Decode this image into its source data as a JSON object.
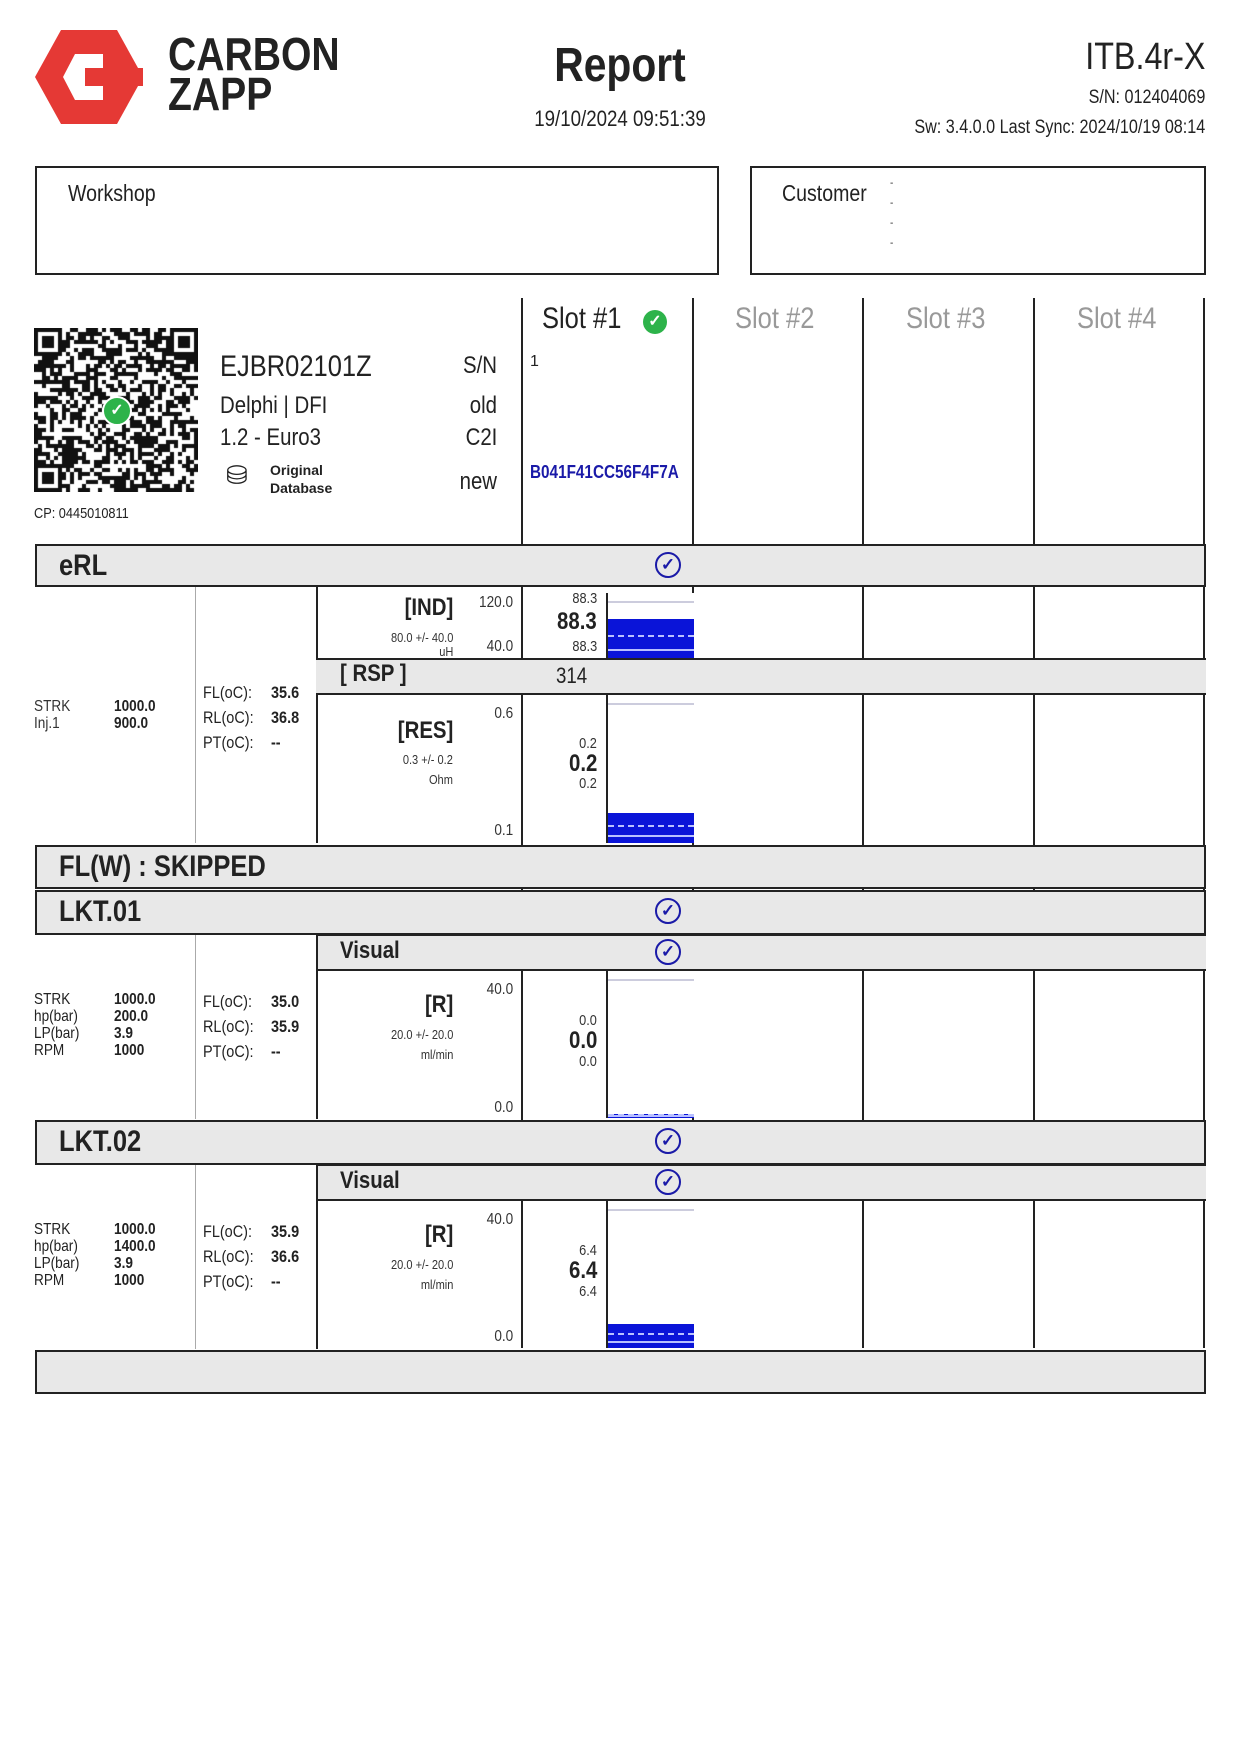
{
  "brand": {
    "line1": "CARBON",
    "line2": "ZAPP",
    "color": "#e53935"
  },
  "header": {
    "title": "Report",
    "datetime": "19/10/2024 09:51:39",
    "device": "ITB.4r-X",
    "serial": "S/N: 012404069",
    "software": "Sw: 3.4.0.0 Last Sync: 2024/10/19 08:14"
  },
  "workshop": {
    "label": "Workshop"
  },
  "customer": {
    "label": "Customer",
    "lines": [
      "-",
      "-",
      "-",
      "-"
    ]
  },
  "injector": {
    "code": "EJBR02101Z",
    "make": "Delphi | DFI",
    "engine": "1.2 - Euro3",
    "database": [
      "Original",
      "Database"
    ],
    "cp": "CP: 0445010811",
    "sn_label": "S/N",
    "old_label": "old",
    "c2i_label": "C2I",
    "new_label": "new"
  },
  "slots": [
    {
      "label": "Slot #1",
      "status": "ok",
      "sn": "1",
      "code": "B041F41CC56F4F7A"
    },
    {
      "label": "Slot #2"
    },
    {
      "label": "Slot #3"
    },
    {
      "label": "Slot #4"
    }
  ],
  "erl": {
    "title": "eRL",
    "params": {
      "strk_label": "STRK",
      "strk": "1000.0",
      "inj_label": "Inj.1",
      "inj": "900.0"
    },
    "temps": {
      "fl_label": "FL(oC):",
      "fl": "35.6",
      "rl_label": "RL(oC):",
      "rl": "36.8",
      "pt_label": "PT(oC):",
      "pt": "--"
    },
    "ind": {
      "label": "[IND]",
      "spec": "80.0 +/- 40.0",
      "unit": "uH",
      "max": "120.0",
      "min": "40.0",
      "top": "88.3",
      "value": "88.3",
      "bottom": "88.3",
      "range": [
        40,
        120
      ],
      "fill": 88.3
    },
    "rsp": {
      "label": "[ RSP ]",
      "value": "314"
    },
    "res": {
      "label": "[RES]",
      "spec": "0.3 +/- 0.2",
      "unit": "Ohm",
      "max": "0.6",
      "min": "0.1",
      "top": "0.2",
      "value": "0.2",
      "bottom": "0.2",
      "range": [
        0.1,
        0.6
      ],
      "fill": 0.2
    }
  },
  "flw": {
    "title": "FL(W) : SKIPPED"
  },
  "lkt1": {
    "title": "LKT.01",
    "visual": "Visual",
    "params": {
      "l1": "STRK",
      "v1": "1000.0",
      "l2": "hp(bar)",
      "v2": "200.0",
      "l3": "LP(bar)",
      "v3": "3.9",
      "l4": "RPM",
      "v4": "1000"
    },
    "temps": {
      "fl_label": "FL(oC):",
      "fl": "35.0",
      "rl_label": "RL(oC):",
      "rl": "35.9",
      "pt_label": "PT(oC):",
      "pt": "--"
    },
    "r": {
      "label": "[R]",
      "spec": "20.0 +/- 20.0",
      "unit": "ml/min",
      "max": "40.0",
      "min": "0.0",
      "top": "0.0",
      "value": "0.0",
      "bottom": "0.0",
      "range": [
        0,
        40
      ],
      "fill": 0.0
    }
  },
  "lkt2": {
    "title": "LKT.02",
    "visual": "Visual",
    "params": {
      "l1": "STRK",
      "v1": "1000.0",
      "l2": "hp(bar)",
      "v2": "1400.0",
      "l3": "LP(bar)",
      "v3": "3.9",
      "l4": "RPM",
      "v4": "1000"
    },
    "temps": {
      "fl_label": "FL(oC):",
      "fl": "35.9",
      "rl_label": "RL(oC):",
      "rl": "36.6",
      "pt_label": "PT(oC):",
      "pt": "--"
    },
    "r": {
      "label": "[R]",
      "spec": "20.0 +/- 20.0",
      "unit": "ml/min",
      "max": "40.0",
      "min": "0.0",
      "top": "6.4",
      "value": "6.4",
      "bottom": "6.4",
      "range": [
        0,
        40
      ],
      "fill": 6.4
    }
  },
  "colors": {
    "pass": "#2db34a",
    "bar": "#0a14d8",
    "check": "#1a1aa8"
  }
}
